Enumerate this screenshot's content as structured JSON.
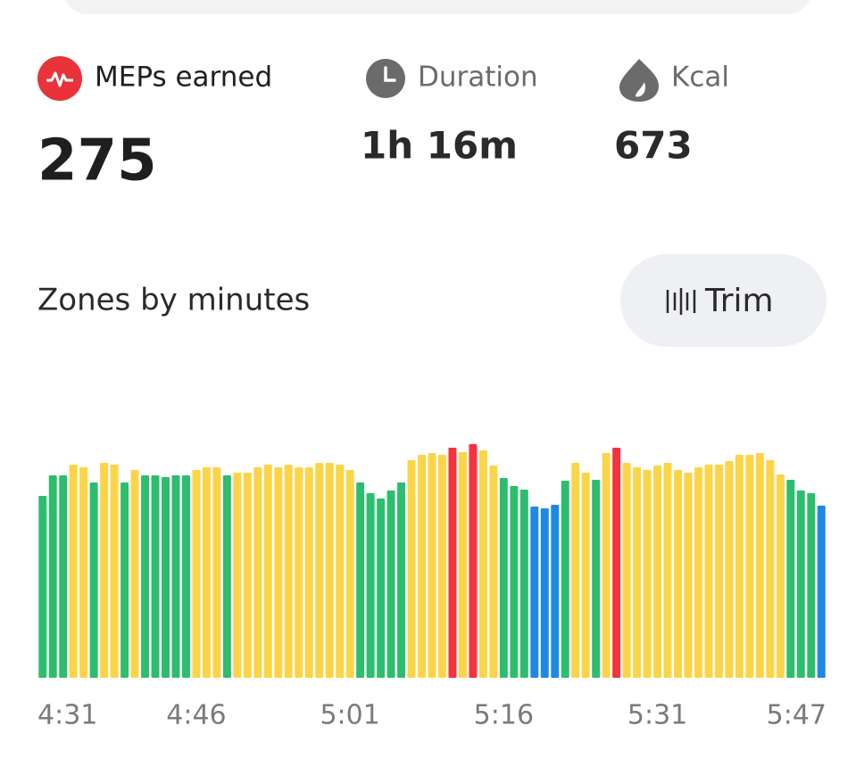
{
  "stats": [
    {
      "label": "MEPs earned",
      "value": 275
    },
    {
      "label": "Duration",
      "value": "1h 16m"
    },
    {
      "label": "Kcal",
      "value": 673
    }
  ],
  "section_title": "Zones by minutes",
  "button": "Trim",
  "chart_data": {
    "type": "bar",
    "categories": [
      "4:31",
      null,
      null,
      null,
      null,
      null,
      null,
      null,
      null,
      null,
      null,
      null,
      null,
      null,
      null,
      "4:46",
      null,
      null,
      null,
      null,
      null,
      null,
      null,
      null,
      null,
      null,
      null,
      null,
      null,
      null,
      "5:01",
      null,
      null,
      null,
      null,
      null,
      null,
      null,
      null,
      null,
      null,
      null,
      null,
      null,
      null,
      "5:16",
      null,
      null,
      null,
      null,
      null,
      null,
      null,
      null,
      null,
      null,
      null,
      null,
      null,
      null,
      "5:31",
      null,
      null,
      null,
      null,
      null,
      null,
      null,
      null,
      null,
      null,
      null,
      null,
      null,
      null,
      null,
      "5:47"
    ],
    "values": [
      204,
      227,
      227,
      239,
      236,
      219,
      241,
      239,
      219,
      233,
      227,
      227,
      225,
      227,
      227,
      233,
      236,
      236,
      227,
      230,
      230,
      236,
      239,
      236,
      239,
      236,
      236,
      241,
      241,
      239,
      233,
      219,
      207,
      201,
      210,
      219,
      244,
      250,
      252,
      250,
      258,
      253,
      262,
      255,
      238,
      224,
      215,
      211,
      192,
      190,
      194,
      221,
      241,
      230,
      222,
      252,
      258,
      241,
      236,
      233,
      238,
      241,
      233,
      230,
      236,
      239,
      239,
      243,
      250,
      250,
      252,
      244,
      228,
      222,
      210,
      207,
      193
    ],
    "colors": [
      "#2dbd6e",
      "#2dbd6e",
      "#2dbd6e",
      "#fcd447",
      "#fcd447",
      "#2dbd6e",
      "#fcd447",
      "#fcd447",
      "#2dbd6e",
      "#fcd447",
      "#2dbd6e",
      "#2dbd6e",
      "#2dbd6e",
      "#2dbd6e",
      "#2dbd6e",
      "#fcd447",
      "#fcd447",
      "#fcd447",
      "#2dbd6e",
      "#fcd447",
      "#fcd447",
      "#fcd447",
      "#fcd447",
      "#fcd447",
      "#fcd447",
      "#fcd447",
      "#fcd447",
      "#fcd447",
      "#fcd447",
      "#fcd447",
      "#fcd447",
      "#2dbd6e",
      "#2dbd6e",
      "#2dbd6e",
      "#2dbd6e",
      "#2dbd6e",
      "#fcd447",
      "#fcd447",
      "#fcd447",
      "#fcd447",
      "#f4333d",
      "#fcd447",
      "#f4333d",
      "#fcd447",
      "#fcd447",
      "#2dbd6e",
      "#2dbd6e",
      "#2dbd6e",
      "#1e88e5",
      "#1e88e5",
      "#1e88e5",
      "#2dbd6e",
      "#fcd447",
      "#fcd447",
      "#2dbd6e",
      "#fcd447",
      "#f4333d",
      "#fcd447",
      "#fcd447",
      "#fcd447",
      "#fcd447",
      "#fcd447",
      "#fcd447",
      "#fcd447",
      "#fcd447",
      "#fcd447",
      "#fcd447",
      "#fcd447",
      "#fcd447",
      "#fcd447",
      "#fcd447",
      "#fcd447",
      "#fcd447",
      "#2dbd6e",
      "#2dbd6e",
      "#2dbd6e",
      "#1e88e5"
    ]
  }
}
